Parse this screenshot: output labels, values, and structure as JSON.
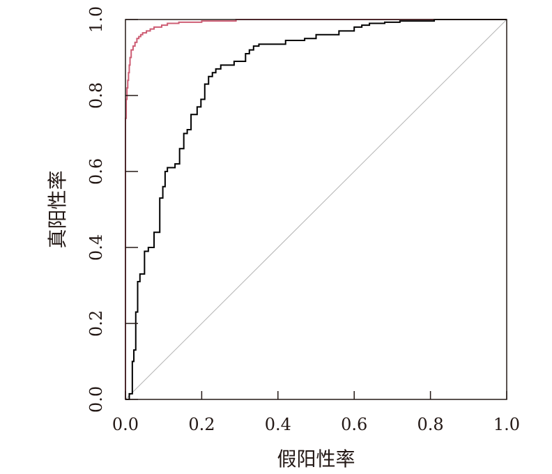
{
  "chart_data": {
    "type": "line",
    "title": "",
    "xlabel": "假阳性率",
    "ylabel": "真阳性率",
    "xlim": [
      0,
      1
    ],
    "ylim": [
      0,
      1
    ],
    "x_ticks": [
      0.0,
      0.2,
      0.4,
      0.6,
      0.8,
      1.0
    ],
    "x_tick_labels": [
      "0.0",
      "0.2",
      "0.4",
      "0.6",
      "0.8",
      "1.0"
    ],
    "y_ticks": [
      0.0,
      0.2,
      0.4,
      0.6,
      0.8,
      1.0
    ],
    "y_tick_labels": [
      "0.0",
      "0.2",
      "0.4",
      "0.6",
      "0.8",
      "1.0"
    ],
    "grid": false,
    "legend": "none",
    "reference_line": {
      "x": [
        0,
        1
      ],
      "y": [
        0,
        1
      ],
      "color": "#b3b3b3"
    },
    "series": [
      {
        "color": "#cd5c73",
        "x": [
          0.0,
          0.0,
          0.002,
          0.002,
          0.004,
          0.004,
          0.006,
          0.006,
          0.008,
          0.008,
          0.01,
          0.01,
          0.012,
          0.012,
          0.015,
          0.015,
          0.02,
          0.02,
          0.025,
          0.025,
          0.03,
          0.03,
          0.035,
          0.035,
          0.04,
          0.04,
          0.045,
          0.045,
          0.055,
          0.055,
          0.065,
          0.065,
          0.075,
          0.075,
          0.095,
          0.095,
          0.11,
          0.11,
          0.14,
          0.14,
          0.2,
          0.2,
          0.29,
          0.29,
          1.0
        ],
        "y": [
          0.0,
          0.74,
          0.74,
          0.79,
          0.79,
          0.82,
          0.82,
          0.84,
          0.84,
          0.86,
          0.86,
          0.88,
          0.88,
          0.9,
          0.9,
          0.92,
          0.92,
          0.93,
          0.93,
          0.94,
          0.94,
          0.95,
          0.95,
          0.955,
          0.955,
          0.96,
          0.96,
          0.965,
          0.965,
          0.97,
          0.97,
          0.975,
          0.975,
          0.98,
          0.98,
          0.985,
          0.985,
          0.99,
          0.99,
          0.993,
          0.993,
          0.996,
          0.996,
          1.0,
          1.0
        ]
      },
      {
        "color": "#000000",
        "x": [
          0.0,
          0.01,
          0.01,
          0.018,
          0.018,
          0.022,
          0.022,
          0.027,
          0.027,
          0.032,
          0.032,
          0.038,
          0.038,
          0.043,
          0.043,
          0.05,
          0.05,
          0.06,
          0.06,
          0.075,
          0.075,
          0.09,
          0.09,
          0.098,
          0.098,
          0.104,
          0.104,
          0.11,
          0.11,
          0.13,
          0.13,
          0.142,
          0.142,
          0.153,
          0.153,
          0.162,
          0.162,
          0.172,
          0.172,
          0.188,
          0.188,
          0.198,
          0.198,
          0.208,
          0.208,
          0.218,
          0.218,
          0.228,
          0.228,
          0.237,
          0.237,
          0.25,
          0.25,
          0.265,
          0.265,
          0.285,
          0.285,
          0.315,
          0.315,
          0.325,
          0.325,
          0.336,
          0.336,
          0.35,
          0.35,
          0.375,
          0.375,
          0.42,
          0.42,
          0.47,
          0.47,
          0.5,
          0.5,
          0.56,
          0.56,
          0.6,
          0.6,
          0.62,
          0.62,
          0.64,
          0.64,
          0.68,
          0.68,
          0.72,
          0.72,
          0.81,
          0.81,
          0.82,
          0.82,
          1.0
        ],
        "y": [
          0.0,
          0.0,
          0.015,
          0.015,
          0.1,
          0.1,
          0.13,
          0.13,
          0.23,
          0.23,
          0.31,
          0.31,
          0.33,
          0.33,
          0.33,
          0.33,
          0.39,
          0.39,
          0.4,
          0.4,
          0.44,
          0.44,
          0.53,
          0.53,
          0.56,
          0.56,
          0.6,
          0.6,
          0.61,
          0.61,
          0.62,
          0.62,
          0.66,
          0.66,
          0.7,
          0.7,
          0.71,
          0.71,
          0.75,
          0.75,
          0.77,
          0.77,
          0.79,
          0.79,
          0.83,
          0.83,
          0.85,
          0.85,
          0.86,
          0.86,
          0.87,
          0.87,
          0.88,
          0.88,
          0.88,
          0.88,
          0.89,
          0.89,
          0.91,
          0.91,
          0.92,
          0.92,
          0.93,
          0.93,
          0.935,
          0.935,
          0.935,
          0.935,
          0.945,
          0.945,
          0.95,
          0.95,
          0.96,
          0.96,
          0.97,
          0.97,
          0.98,
          0.98,
          0.985,
          0.985,
          0.99,
          0.99,
          0.993,
          0.993,
          0.996,
          0.996,
          1.0,
          1.0,
          1.0,
          1.0
        ]
      }
    ]
  }
}
